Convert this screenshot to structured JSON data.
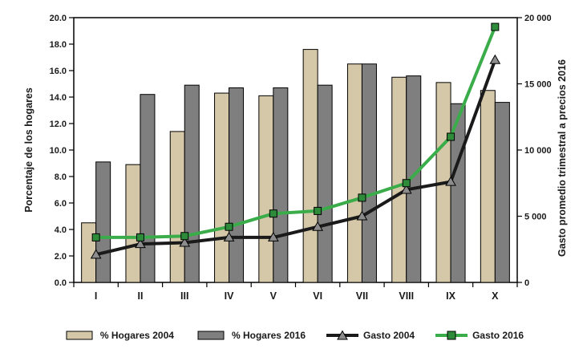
{
  "chart_data": {
    "type": "bar-line-combo",
    "categories": [
      "I",
      "II",
      "III",
      "IV",
      "V",
      "VI",
      "VII",
      "VIII",
      "IX",
      "X"
    ],
    "bar_series": [
      {
        "name": "% Hogares 2004",
        "axis": "left",
        "color": "#d5c8a8",
        "values": [
          4.5,
          8.9,
          11.4,
          14.3,
          14.1,
          17.6,
          16.5,
          15.5,
          15.1,
          14.5
        ]
      },
      {
        "name": "% Hogares 2016",
        "axis": "left",
        "color": "#7f7f7f",
        "values": [
          9.1,
          14.2,
          14.9,
          14.7,
          14.7,
          14.9,
          16.5,
          15.6,
          13.5,
          13.6
        ]
      }
    ],
    "line_series": [
      {
        "name": "Gasto 2004",
        "axis": "right",
        "color": "#1a1a1a",
        "marker": "triangle",
        "marker_color": "#8c8c8c",
        "values": [
          2100,
          2900,
          3000,
          3400,
          3400,
          4200,
          5000,
          7000,
          7600,
          16800
        ]
      },
      {
        "name": "Gasto 2016",
        "axis": "right",
        "color": "#3aad4a",
        "marker": "square",
        "marker_color": "#2e8b3a",
        "values": [
          3400,
          3400,
          3500,
          4200,
          5200,
          5400,
          6400,
          7500,
          11000,
          19300
        ]
      }
    ],
    "left_axis": {
      "label": "Porcentaje de los hogares",
      "min": 0,
      "max": 20,
      "ticks": [
        "0.0",
        "2.0",
        "4.0",
        "6.0",
        "8.0",
        "10.0",
        "12.0",
        "14.0",
        "16.0",
        "18.0",
        "20.0"
      ]
    },
    "right_axis": {
      "label": "Gasto promedio trimestral a precios 2016",
      "min": 0,
      "max": 20000,
      "ticks": [
        {
          "value": 0,
          "label": "0"
        },
        {
          "value": 5000,
          "label": "5 000"
        },
        {
          "value": 10000,
          "label": "10 000"
        },
        {
          "value": 15000,
          "label": "15 000"
        },
        {
          "value": 20000,
          "label": "20 000"
        }
      ]
    },
    "legend": [
      {
        "label": "% Hogares 2004",
        "swatch": "bar",
        "color": "#d5c8a8"
      },
      {
        "label": "% Hogares 2016",
        "swatch": "bar",
        "color": "#7f7f7f"
      },
      {
        "label": "Gasto 2004",
        "swatch": "line-triangle",
        "color": "#1a1a1a",
        "marker_color": "#8c8c8c"
      },
      {
        "label": "Gasto 2016",
        "swatch": "line-square",
        "color": "#3aad4a",
        "marker_color": "#2e8b3a"
      }
    ],
    "grid": false,
    "legend_position": "bottom"
  }
}
